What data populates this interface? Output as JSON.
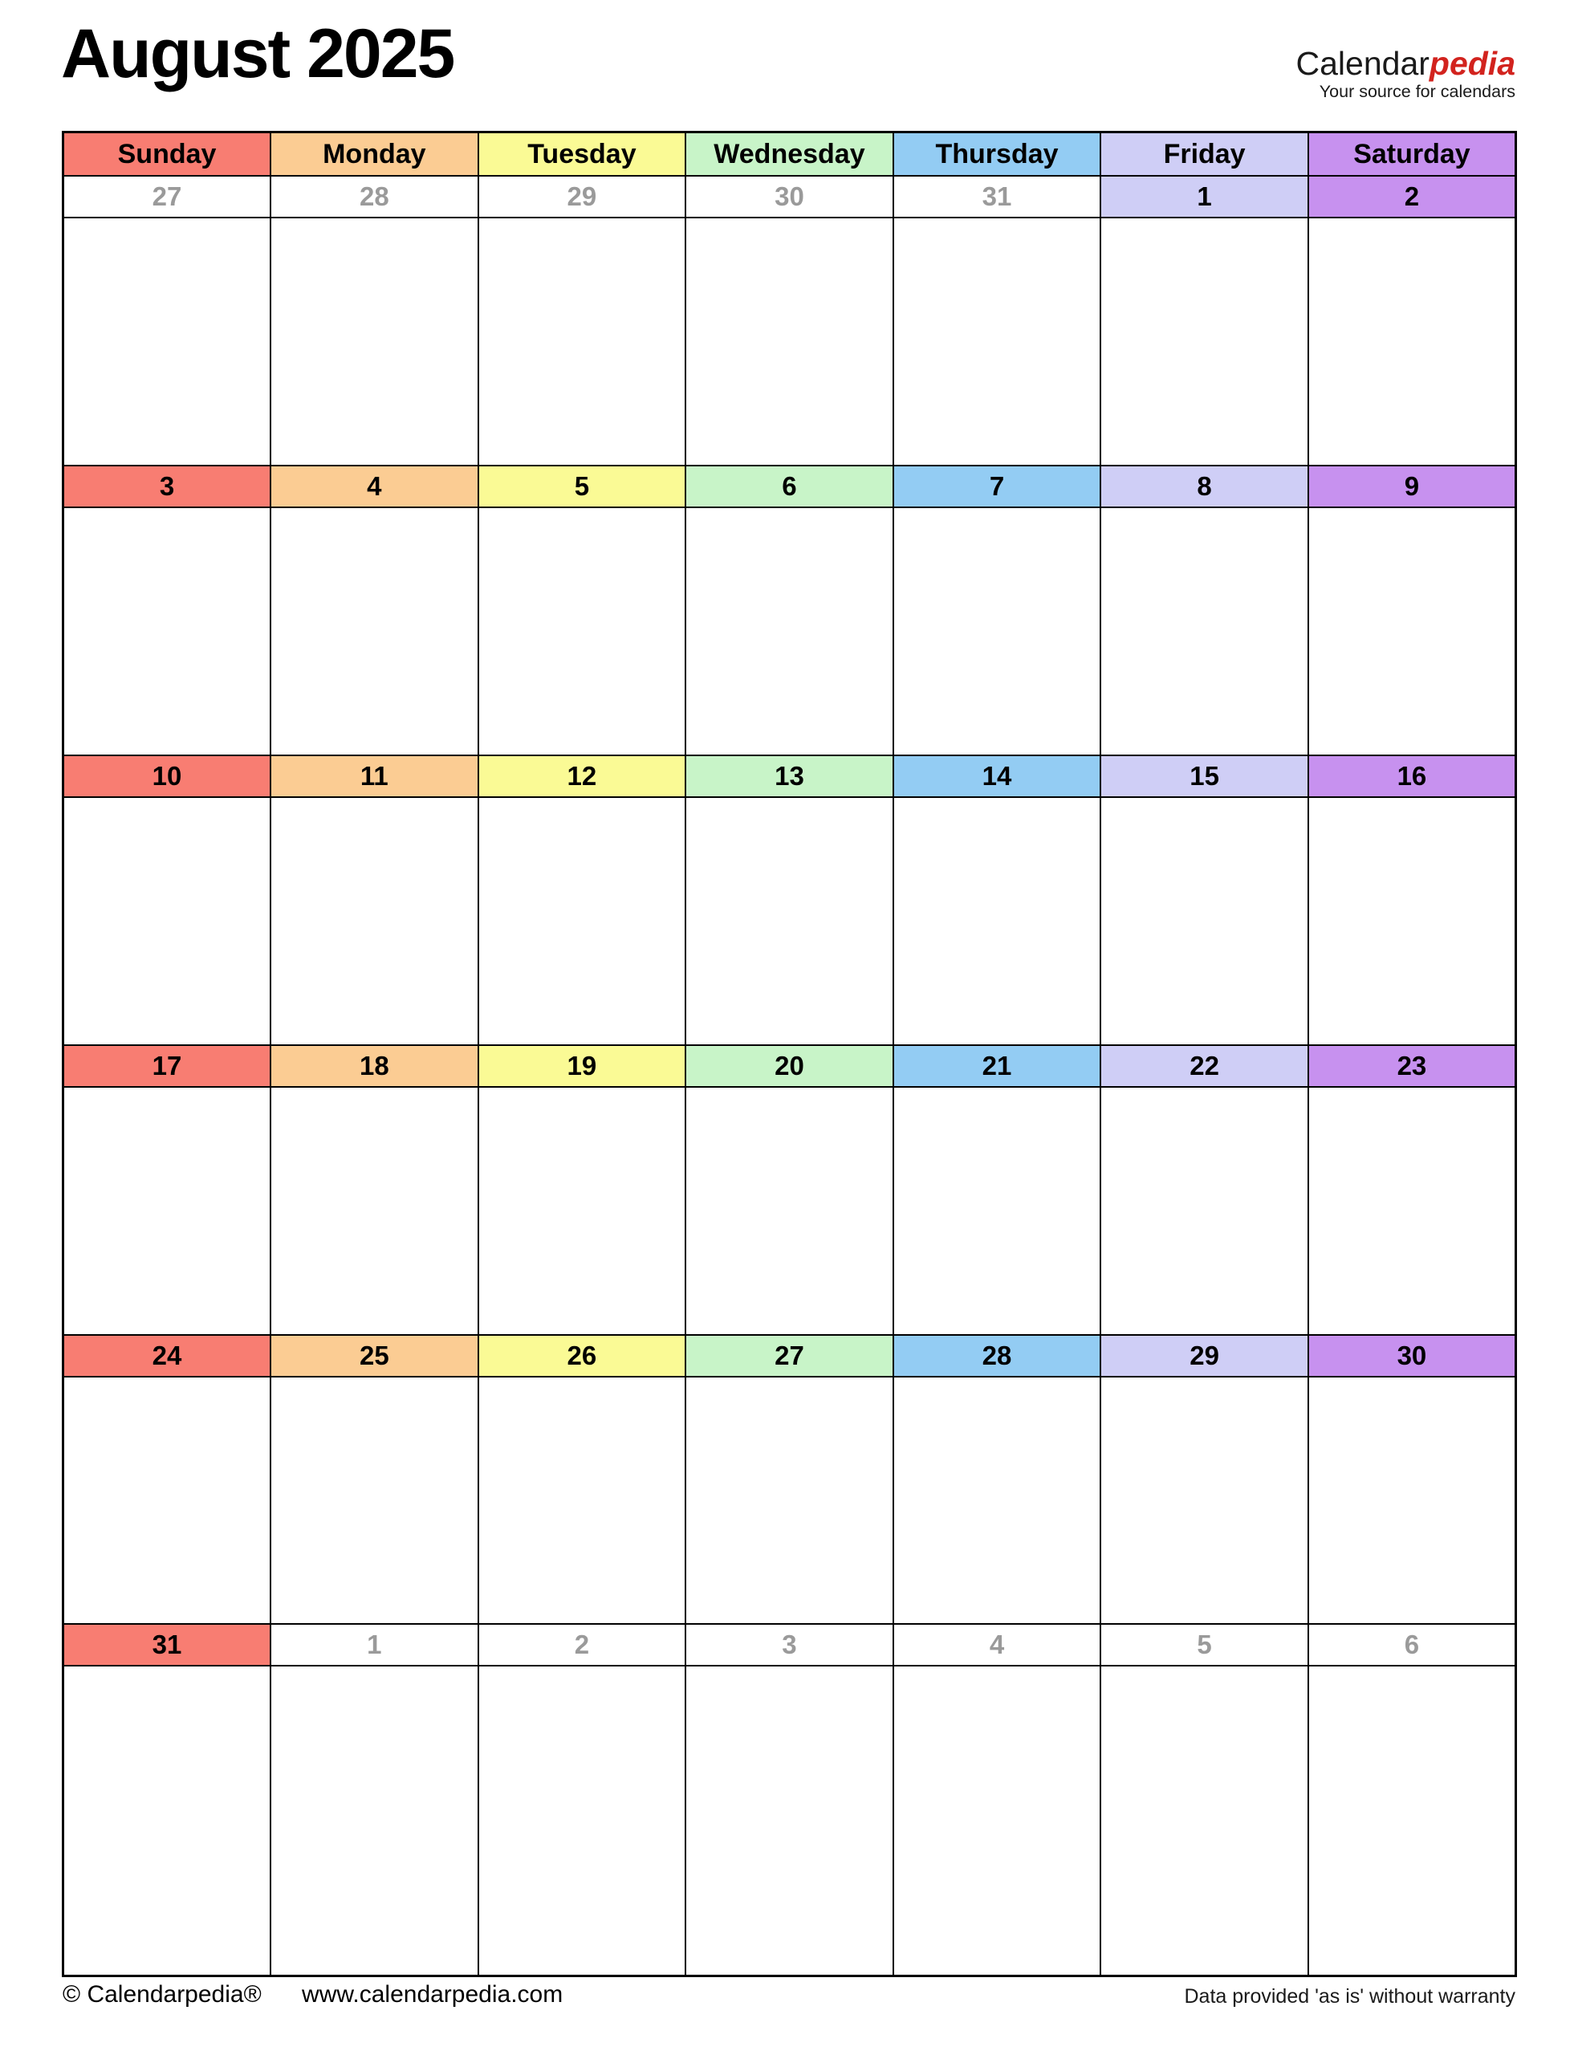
{
  "title": {
    "text": "August 2025"
  },
  "logo": {
    "name_black": "Calendar",
    "name_red": "pedia",
    "tagline": "Your source for calendars",
    "red_color": "#d2231e"
  },
  "weekdays": [
    {
      "label": "Sunday",
      "color": "#f87d72"
    },
    {
      "label": "Monday",
      "color": "#fbcc93"
    },
    {
      "label": "Tuesday",
      "color": "#fafa95"
    },
    {
      "label": "Wednesday",
      "color": "#c8f4c8"
    },
    {
      "label": "Thursday",
      "color": "#93ccf3"
    },
    {
      "label": "Friday",
      "color": "#cfcef6"
    },
    {
      "label": "Saturday",
      "color": "#c791ef"
    }
  ],
  "weeks": [
    {
      "days": [
        {
          "num": "27",
          "in_month": false
        },
        {
          "num": "28",
          "in_month": false
        },
        {
          "num": "29",
          "in_month": false
        },
        {
          "num": "30",
          "in_month": false
        },
        {
          "num": "31",
          "in_month": false
        },
        {
          "num": "1",
          "in_month": true
        },
        {
          "num": "2",
          "in_month": true
        }
      ]
    },
    {
      "days": [
        {
          "num": "3",
          "in_month": true
        },
        {
          "num": "4",
          "in_month": true
        },
        {
          "num": "5",
          "in_month": true
        },
        {
          "num": "6",
          "in_month": true
        },
        {
          "num": "7",
          "in_month": true
        },
        {
          "num": "8",
          "in_month": true
        },
        {
          "num": "9",
          "in_month": true
        }
      ]
    },
    {
      "days": [
        {
          "num": "10",
          "in_month": true
        },
        {
          "num": "11",
          "in_month": true
        },
        {
          "num": "12",
          "in_month": true
        },
        {
          "num": "13",
          "in_month": true
        },
        {
          "num": "14",
          "in_month": true
        },
        {
          "num": "15",
          "in_month": true
        },
        {
          "num": "16",
          "in_month": true
        }
      ]
    },
    {
      "days": [
        {
          "num": "17",
          "in_month": true
        },
        {
          "num": "18",
          "in_month": true
        },
        {
          "num": "19",
          "in_month": true
        },
        {
          "num": "20",
          "in_month": true
        },
        {
          "num": "21",
          "in_month": true
        },
        {
          "num": "22",
          "in_month": true
        },
        {
          "num": "23",
          "in_month": true
        }
      ]
    },
    {
      "days": [
        {
          "num": "24",
          "in_month": true
        },
        {
          "num": "25",
          "in_month": true
        },
        {
          "num": "26",
          "in_month": true
        },
        {
          "num": "27",
          "in_month": true
        },
        {
          "num": "28",
          "in_month": true
        },
        {
          "num": "29",
          "in_month": true
        },
        {
          "num": "30",
          "in_month": true
        }
      ]
    },
    {
      "days": [
        {
          "num": "31",
          "in_month": true
        },
        {
          "num": "1",
          "in_month": false
        },
        {
          "num": "2",
          "in_month": false
        },
        {
          "num": "3",
          "in_month": false
        },
        {
          "num": "4",
          "in_month": false
        },
        {
          "num": "5",
          "in_month": false
        },
        {
          "num": "6",
          "in_month": false
        }
      ]
    }
  ],
  "footer": {
    "copyright": "© Calendarpedia®",
    "url": "www.calendarpedia.com",
    "disclaimer": "Data provided 'as is' without warranty"
  },
  "colors": {
    "out_month_text": "#9a9a9a",
    "in_month_text": "#000000",
    "border": "#000000"
  }
}
